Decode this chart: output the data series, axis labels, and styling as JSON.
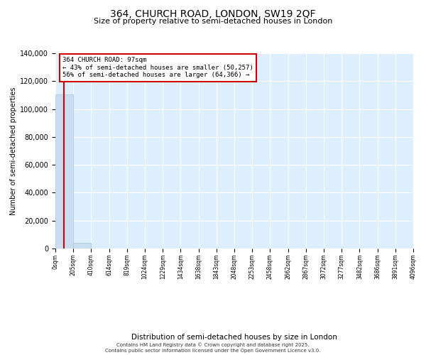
{
  "title_line1": "364, CHURCH ROAD, LONDON, SW19 2QF",
  "title_line2": "Size of property relative to semi-detached houses in London",
  "xlabel": "Distribution of semi-detached houses by size in London",
  "ylabel": "Number of semi-detached properties",
  "annotation_text_line1": "364 CHURCH ROAD: 97sqm",
  "annotation_text_line2": "← 43% of semi-detached houses are smaller (50,257)",
  "annotation_text_line3": "56% of semi-detached houses are larger (64,366) →",
  "bin_edges": [
    0,
    205,
    410,
    614,
    819,
    1024,
    1229,
    1434,
    1638,
    1843,
    2048,
    2253,
    2458,
    2662,
    2867,
    3072,
    3277,
    3482,
    3686,
    3891,
    4096
  ],
  "bin_counts": [
    110700,
    4200,
    80,
    15,
    8,
    4,
    3,
    2,
    1,
    1,
    1,
    1,
    0,
    0,
    0,
    0,
    0,
    0,
    0,
    0
  ],
  "bar_color": "#c8ddf0",
  "bar_edge_color": "#a8c4de",
  "vline_color": "#cc0000",
  "vline_x": 97,
  "background_color": "#ddeeff",
  "annotation_box_facecolor": "#ffffff",
  "annotation_box_edgecolor": "#cc0000",
  "ylim": [
    0,
    140000
  ],
  "yticks": [
    0,
    20000,
    40000,
    60000,
    80000,
    100000,
    120000,
    140000
  ],
  "footer_line1": "Contains HM Land Registry data © Crown copyright and database right 2025.",
  "footer_line2": "Contains public sector information licensed under the Open Government Licence v3.0."
}
